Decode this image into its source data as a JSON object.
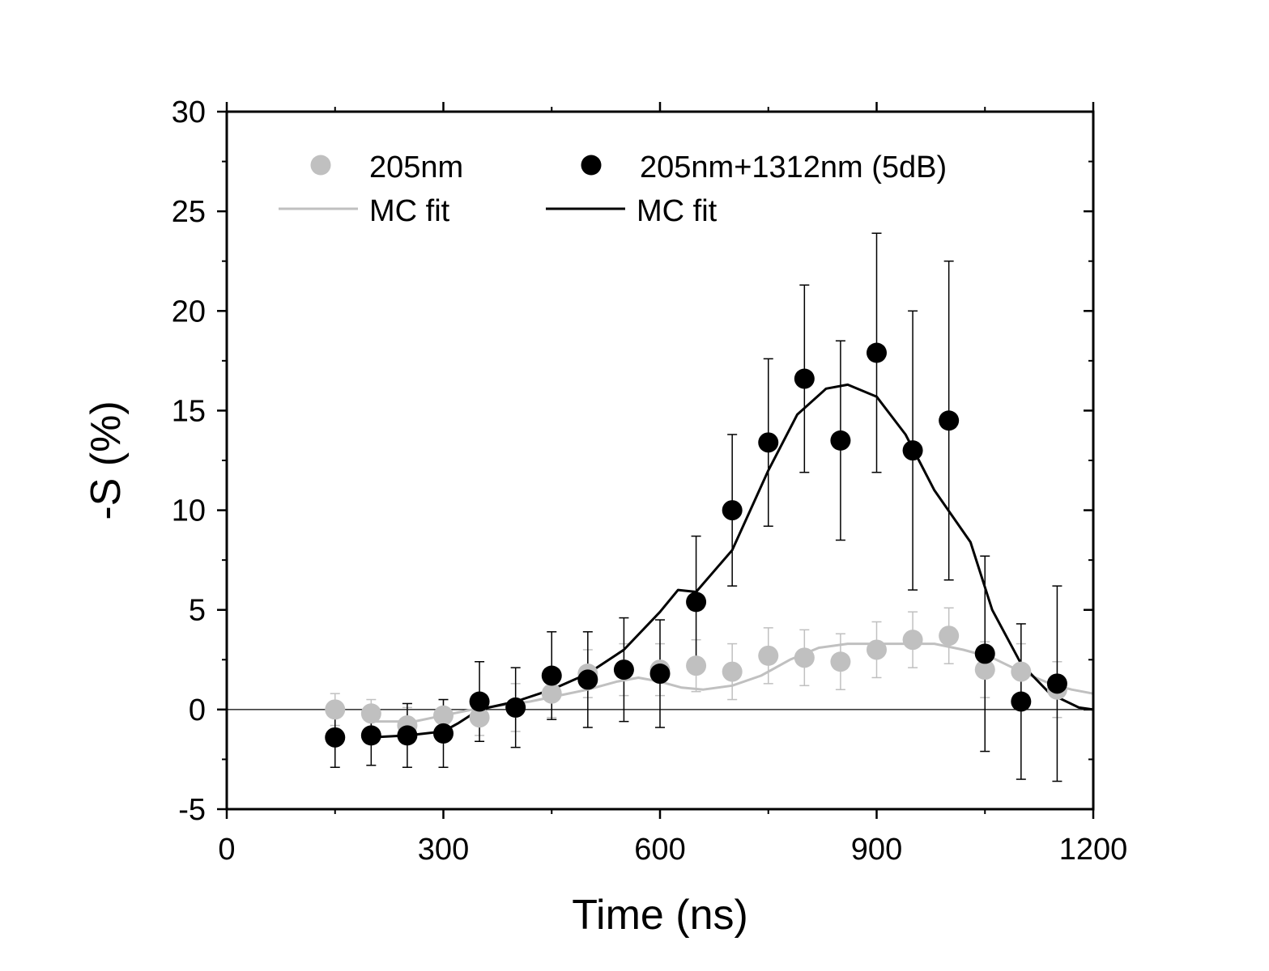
{
  "chart_data": {
    "type": "scatter",
    "title": "",
    "xlabel": "Time (ns)",
    "ylabel": "-S (%)",
    "xlim": [
      0,
      1200
    ],
    "ylim": [
      -5,
      30
    ],
    "xticks": [
      0,
      300,
      600,
      900,
      1200
    ],
    "yticks": [
      -5,
      0,
      5,
      10,
      15,
      20,
      25,
      30
    ],
    "zero_line": true,
    "legend_position": "top",
    "series": [
      {
        "name": "205nm",
        "kind": "points",
        "color": "#c0c0c0",
        "x": [
          150,
          200,
          250,
          300,
          350,
          400,
          450,
          500,
          550,
          600,
          650,
          700,
          750,
          800,
          850,
          900,
          950,
          1000,
          1050,
          1100,
          1150
        ],
        "y": [
          0.0,
          -0.2,
          -0.8,
          -0.3,
          -0.4,
          0.1,
          0.8,
          1.8,
          2.0,
          2.0,
          2.2,
          1.9,
          2.7,
          2.6,
          2.4,
          3.0,
          3.5,
          3.7,
          2.0,
          1.9,
          1.0
        ],
        "err": [
          0.8,
          0.7,
          0.9,
          0.8,
          0.9,
          1.2,
          1.2,
          1.2,
          1.3,
          1.3,
          1.3,
          1.4,
          1.4,
          1.4,
          1.4,
          1.4,
          1.4,
          1.4,
          1.4,
          1.4,
          1.4
        ]
      },
      {
        "name": "205nm+1312nm (5dB)",
        "kind": "points",
        "color": "#000000",
        "x": [
          150,
          200,
          250,
          300,
          350,
          400,
          450,
          500,
          550,
          600,
          650,
          700,
          750,
          800,
          850,
          900,
          950,
          1000,
          1050,
          1100,
          1150
        ],
        "y": [
          -1.4,
          -1.3,
          -1.3,
          -1.2,
          0.4,
          0.1,
          1.7,
          1.5,
          2.0,
          1.8,
          5.4,
          10.0,
          13.4,
          16.6,
          13.5,
          17.9,
          13.0,
          14.5,
          2.8,
          0.4,
          1.3
        ],
        "err": [
          1.5,
          1.5,
          1.6,
          1.7,
          2.0,
          2.0,
          2.2,
          2.4,
          2.6,
          2.7,
          3.3,
          3.8,
          4.2,
          4.7,
          5.0,
          6.0,
          7.0,
          8.0,
          4.9,
          3.9,
          4.9
        ]
      },
      {
        "name": "MC fit",
        "kind": "line",
        "color": "#c0c0c0",
        "x": [
          200,
          230,
          260,
          300,
          340,
          380,
          420,
          460,
          500,
          540,
          570,
          600,
          630,
          660,
          700,
          740,
          780,
          820,
          860,
          900,
          940,
          980,
          1020,
          1060,
          1100,
          1140,
          1170,
          1200
        ],
        "y": [
          -0.6,
          -0.6,
          -0.6,
          -0.3,
          0.0,
          0.2,
          0.4,
          0.7,
          1.0,
          1.4,
          1.6,
          1.4,
          1.1,
          1.0,
          1.2,
          1.7,
          2.5,
          3.1,
          3.3,
          3.3,
          3.3,
          3.3,
          3.0,
          2.6,
          1.9,
          1.3,
          1.0,
          0.8
        ]
      },
      {
        "name": "MC fit",
        "kind": "line",
        "color": "#000000",
        "x": [
          200,
          250,
          300,
          320,
          350,
          400,
          450,
          500,
          550,
          600,
          625,
          650,
          700,
          750,
          790,
          830,
          860,
          900,
          940,
          980,
          1030,
          1060,
          1100,
          1140,
          1180,
          1200
        ],
        "y": [
          -1.4,
          -1.3,
          -1.1,
          -0.7,
          0.0,
          0.4,
          1.0,
          1.8,
          3.0,
          4.9,
          6.0,
          5.9,
          8.0,
          12.0,
          14.8,
          16.1,
          16.3,
          15.7,
          13.8,
          11.0,
          8.4,
          5.0,
          2.3,
          0.8,
          0.1,
          0.0
        ]
      }
    ]
  }
}
